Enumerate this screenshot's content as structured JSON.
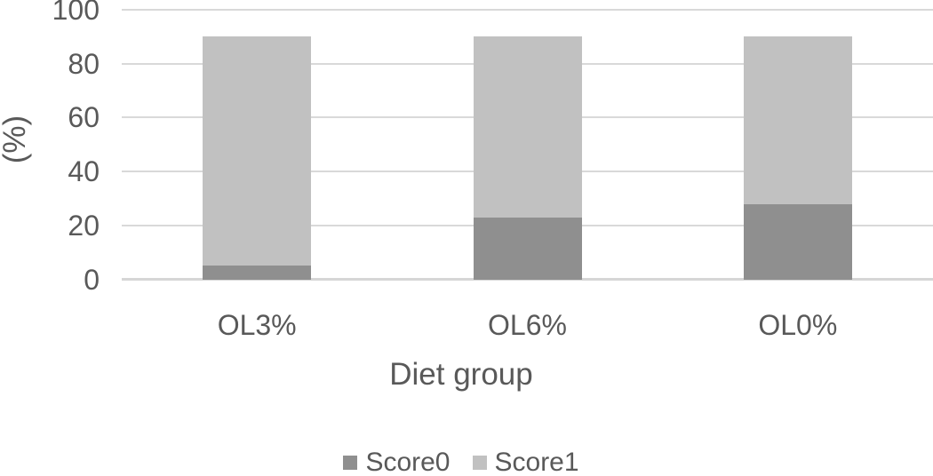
{
  "chart_data": {
    "type": "bar",
    "stacked": true,
    "title": "",
    "categories": [
      "OL3%",
      "OL6%",
      "OL0%"
    ],
    "series": [
      {
        "name": "Score0",
        "color": "#8f8f8f",
        "values": [
          5,
          23,
          28
        ]
      },
      {
        "name": "Score1",
        "color": "#c1c1c1",
        "values": [
          85,
          67,
          62
        ]
      }
    ],
    "totals": [
      90,
      90,
      90
    ],
    "xlabel": "Diet group",
    "ylabel": "(%)",
    "ylim": [
      0,
      100
    ],
    "yticks": [
      0,
      20,
      40,
      60,
      80,
      100
    ],
    "grid": true,
    "gridline_color": "#d9d9d9",
    "text_color": "#595959",
    "legend_position": "bottom",
    "legend_labels": [
      "Score0",
      "Score1"
    ]
  }
}
